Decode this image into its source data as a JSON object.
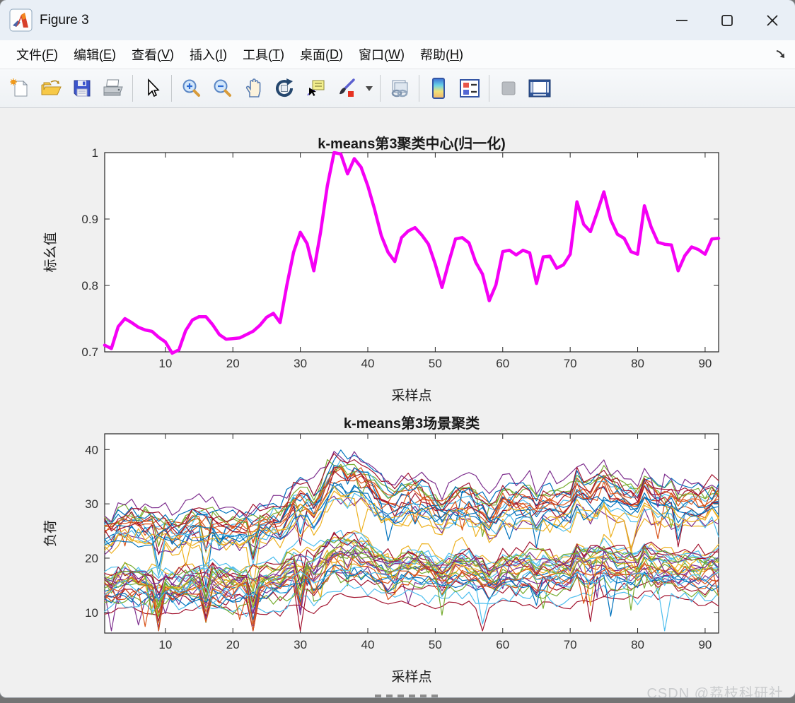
{
  "window": {
    "title": "Figure 3",
    "controls": {
      "minimize": "minimize",
      "maximize": "maximize",
      "close": "close"
    }
  },
  "menu": {
    "items": [
      {
        "label": "文件",
        "mnemonic": "F"
      },
      {
        "label": "编辑",
        "mnemonic": "E"
      },
      {
        "label": "查看",
        "mnemonic": "V"
      },
      {
        "label": "插入",
        "mnemonic": "I"
      },
      {
        "label": "工具",
        "mnemonic": "T"
      },
      {
        "label": "桌面",
        "mnemonic": "D"
      },
      {
        "label": "窗口",
        "mnemonic": "W"
      },
      {
        "label": "帮助",
        "mnemonic": "H"
      }
    ],
    "dock_arrow_icon": "dock-arrow-icon"
  },
  "toolbar": {
    "icons": [
      "new-figure-icon",
      "open-file-icon",
      "save-icon",
      "print-icon",
      "cursor-arrow-icon",
      "zoom-in-icon",
      "zoom-out-icon",
      "pan-hand-icon",
      "rotate-3d-icon",
      "data-cursor-icon",
      "brush-icon",
      "brush-dropdown-icon",
      "link-plot-icon",
      "insert-colorbar-icon",
      "insert-legend-icon",
      "plot-tools-off-icon",
      "dock-plot-tools-icon"
    ]
  },
  "watermark": "CSDN @荔枝科研社",
  "chart_data": [
    {
      "type": "line",
      "title": "k-means第3聚类中心(归一化)",
      "xlabel": "采样点",
      "ylabel": "标幺值",
      "xlim": [
        1,
        92
      ],
      "ylim": [
        0.7,
        1.0
      ],
      "x_ticks": [
        10,
        20,
        30,
        40,
        50,
        60,
        70,
        80,
        90
      ],
      "x_tick_labels": [
        "10",
        "20",
        "30",
        "40",
        "50",
        "60",
        "70",
        "80",
        "90"
      ],
      "y_ticks": [
        0.7,
        0.8,
        0.9,
        1.0
      ],
      "y_tick_labels": [
        "0.7",
        "0.8",
        "0.9",
        "1"
      ],
      "grid": false,
      "line_color": "#F500F5",
      "line_width": 4.5,
      "x_start": 1,
      "values": [
        0.71,
        0.705,
        0.738,
        0.75,
        0.744,
        0.737,
        0.733,
        0.731,
        0.722,
        0.715,
        0.698,
        0.703,
        0.732,
        0.748,
        0.753,
        0.753,
        0.741,
        0.726,
        0.719,
        0.72,
        0.721,
        0.726,
        0.731,
        0.74,
        0.752,
        0.758,
        0.744,
        0.8,
        0.85,
        0.88,
        0.863,
        0.822,
        0.88,
        0.95,
        1.0,
        0.998,
        0.968,
        0.991,
        0.978,
        0.95,
        0.915,
        0.875,
        0.85,
        0.836,
        0.872,
        0.882,
        0.887,
        0.876,
        0.862,
        0.832,
        0.797,
        0.835,
        0.87,
        0.872,
        0.864,
        0.835,
        0.817,
        0.777,
        0.801,
        0.851,
        0.853,
        0.846,
        0.853,
        0.849,
        0.803,
        0.843,
        0.844,
        0.826,
        0.831,
        0.847,
        0.926,
        0.892,
        0.881,
        0.91,
        0.941,
        0.899,
        0.877,
        0.871,
        0.851,
        0.847,
        0.92,
        0.888,
        0.865,
        0.862,
        0.861,
        0.822,
        0.845,
        0.858,
        0.854,
        0.847,
        0.87,
        0.871
      ]
    },
    {
      "type": "line",
      "title": "k-means第3场景聚类",
      "xlabel": "采样点",
      "ylabel": "负荷",
      "xlim": [
        1,
        92
      ],
      "ylim": [
        6.2,
        42.9
      ],
      "x_ticks": [
        10,
        20,
        30,
        40,
        50,
        60,
        70,
        80,
        90
      ],
      "x_tick_labels": [
        "10",
        "20",
        "30",
        "40",
        "50",
        "60",
        "70",
        "80",
        "90"
      ],
      "y_ticks": [
        10,
        20,
        30,
        40
      ],
      "y_tick_labels": [
        "10",
        "20",
        "30",
        "40"
      ],
      "grid": false,
      "palette": [
        "#0072BD",
        "#D95319",
        "#EDB120",
        "#7E2F8E",
        "#77AC30",
        "#4DBEEE",
        "#A2142F"
      ],
      "line_width": 1.2,
      "series_synthesis": {
        "comment": "~50 load scenario curves clustered around the center curve of chart 1",
        "n_series": 50,
        "seed": 11,
        "scale_min": 15,
        "scale_max": 41,
        "noise": 2.4,
        "drift": 1.3,
        "dip_prob": 0.02,
        "dip_xs": [
          9,
          16,
          23,
          30
        ],
        "common_dip_fraction": 0.3,
        "clamp": [
          6.6,
          42.8
        ],
        "pinned": [
          {
            "index": 6,
            "scale": 13.6,
            "noise": 0.8
          },
          {
            "index": 2,
            "scale": 30.5
          }
        ]
      }
    }
  ]
}
